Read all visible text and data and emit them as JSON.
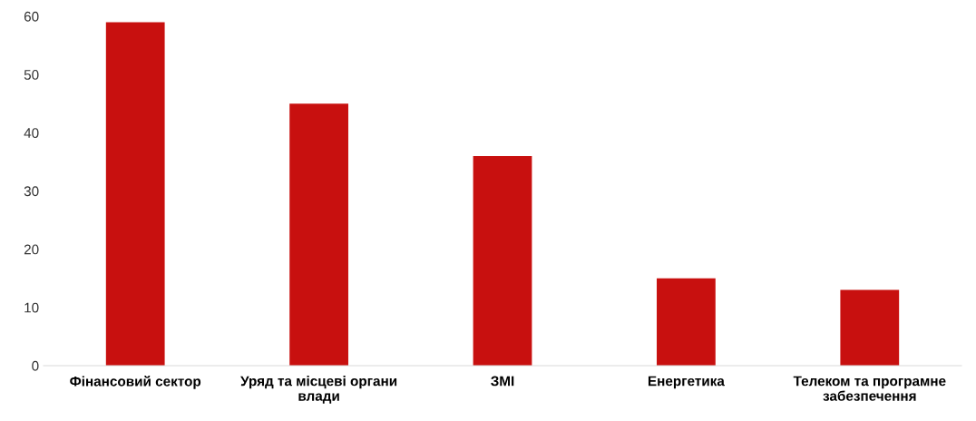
{
  "chart_data": {
    "type": "bar",
    "categories": [
      "Фінансовий сектор",
      "Уряд та місцеві органи\nвлади",
      "ЗМІ",
      "Енергетика",
      "Телеком та програмне\nзабезпечення"
    ],
    "values": [
      59,
      45,
      36,
      15,
      13
    ],
    "color": "#c8100f",
    "ylim": [
      0,
      60
    ],
    "yticks": [
      0,
      10,
      20,
      30,
      40,
      50,
      60
    ],
    "grid": false
  }
}
